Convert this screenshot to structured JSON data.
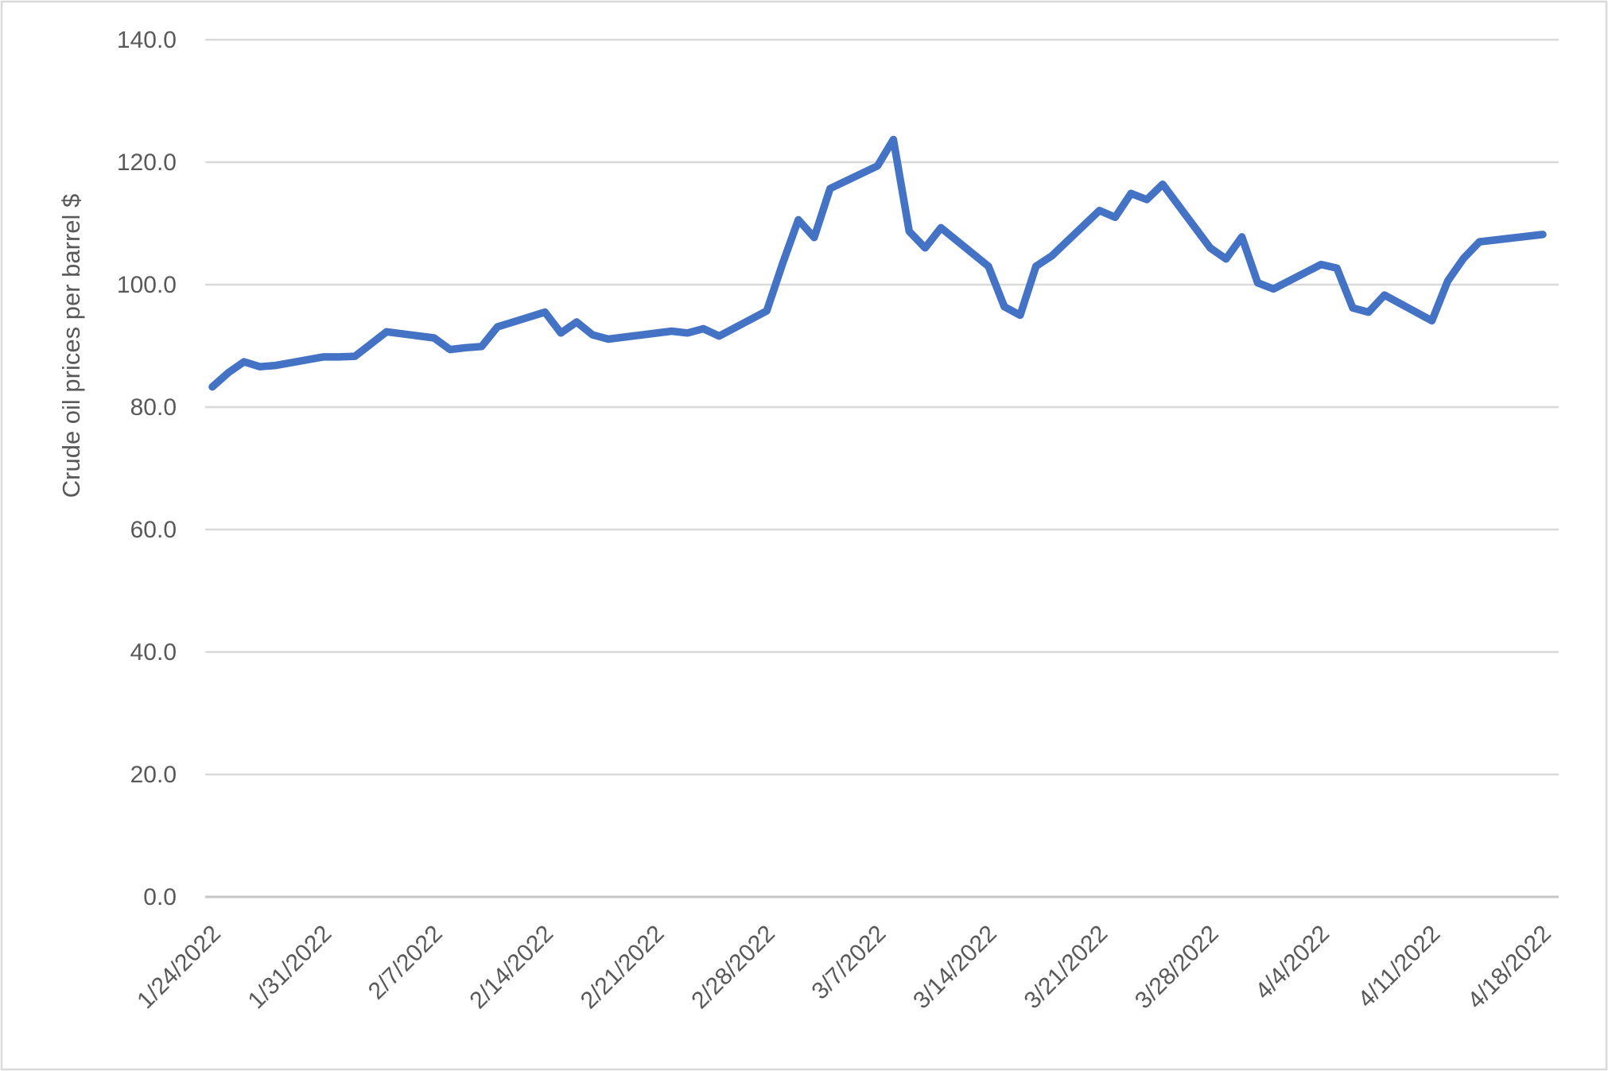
{
  "chart_data": {
    "type": "line",
    "title": "",
    "xlabel": "",
    "ylabel": "Crude oil prices per barrel $",
    "ylim": [
      0,
      140
    ],
    "ytick_step": 20,
    "ytick_labels": [
      "0.0",
      "20.0",
      "40.0",
      "60.0",
      "80.0",
      "100.0",
      "120.0",
      "140.0"
    ],
    "xtick_labels": [
      "1/24/2022",
      "1/31/2022",
      "2/7/2022",
      "2/14/2022",
      "2/21/2022",
      "2/28/2022",
      "3/7/2022",
      "3/14/2022",
      "3/21/2022",
      "3/28/2022",
      "4/4/2022",
      "4/11/2022",
      "4/18/2022"
    ],
    "x_axis_type": "date",
    "x_range": [
      "1/24/2022",
      "4/18/2022"
    ],
    "grid": "horizontal",
    "legend": "none",
    "series": [
      {
        "name": "Crude oil prices per barrel $",
        "points": [
          {
            "date": "1/24/2022",
            "value": 83.3
          },
          {
            "date": "1/25/2022",
            "value": 85.6
          },
          {
            "date": "1/26/2022",
            "value": 87.4
          },
          {
            "date": "1/27/2022",
            "value": 86.6
          },
          {
            "date": "1/28/2022",
            "value": 86.8
          },
          {
            "date": "1/31/2022",
            "value": 88.2
          },
          {
            "date": "2/1/2022",
            "value": 88.2
          },
          {
            "date": "2/2/2022",
            "value": 88.3
          },
          {
            "date": "2/3/2022",
            "value": 90.3
          },
          {
            "date": "2/4/2022",
            "value": 92.3
          },
          {
            "date": "2/7/2022",
            "value": 91.3
          },
          {
            "date": "2/8/2022",
            "value": 89.4
          },
          {
            "date": "2/9/2022",
            "value": 89.7
          },
          {
            "date": "2/10/2022",
            "value": 89.9
          },
          {
            "date": "2/11/2022",
            "value": 93.1
          },
          {
            "date": "2/14/2022",
            "value": 95.5
          },
          {
            "date": "2/15/2022",
            "value": 92.1
          },
          {
            "date": "2/16/2022",
            "value": 93.9
          },
          {
            "date": "2/17/2022",
            "value": 91.8
          },
          {
            "date": "2/18/2022",
            "value": 91.1
          },
          {
            "date": "2/22/2022",
            "value": 92.4
          },
          {
            "date": "2/23/2022",
            "value": 92.1
          },
          {
            "date": "2/24/2022",
            "value": 92.8
          },
          {
            "date": "2/25/2022",
            "value": 91.6
          },
          {
            "date": "2/28/2022",
            "value": 95.7
          },
          {
            "date": "3/1/2022",
            "value": 103.4
          },
          {
            "date": "3/2/2022",
            "value": 110.6
          },
          {
            "date": "3/3/2022",
            "value": 107.7
          },
          {
            "date": "3/4/2022",
            "value": 115.7
          },
          {
            "date": "3/7/2022",
            "value": 119.4
          },
          {
            "date": "3/8/2022",
            "value": 123.7
          },
          {
            "date": "3/9/2022",
            "value": 108.7
          },
          {
            "date": "3/10/2022",
            "value": 106.0
          },
          {
            "date": "3/11/2022",
            "value": 109.3
          },
          {
            "date": "3/14/2022",
            "value": 103.0
          },
          {
            "date": "3/15/2022",
            "value": 96.4
          },
          {
            "date": "3/16/2022",
            "value": 95.0
          },
          {
            "date": "3/17/2022",
            "value": 103.0
          },
          {
            "date": "3/18/2022",
            "value": 104.7
          },
          {
            "date": "3/21/2022",
            "value": 112.1
          },
          {
            "date": "3/22/2022",
            "value": 111.0
          },
          {
            "date": "3/23/2022",
            "value": 114.9
          },
          {
            "date": "3/24/2022",
            "value": 113.9
          },
          {
            "date": "3/25/2022",
            "value": 116.4
          },
          {
            "date": "3/28/2022",
            "value": 106.0
          },
          {
            "date": "3/29/2022",
            "value": 104.2
          },
          {
            "date": "3/30/2022",
            "value": 107.8
          },
          {
            "date": "3/31/2022",
            "value": 100.3
          },
          {
            "date": "4/1/2022",
            "value": 99.3
          },
          {
            "date": "4/4/2022",
            "value": 103.3
          },
          {
            "date": "4/5/2022",
            "value": 102.7
          },
          {
            "date": "4/6/2022",
            "value": 96.2
          },
          {
            "date": "4/7/2022",
            "value": 95.5
          },
          {
            "date": "4/8/2022",
            "value": 98.3
          },
          {
            "date": "4/11/2022",
            "value": 94.1
          },
          {
            "date": "4/12/2022",
            "value": 100.6
          },
          {
            "date": "4/13/2022",
            "value": 104.3
          },
          {
            "date": "4/14/2022",
            "value": 107.0
          },
          {
            "date": "4/18/2022",
            "value": 108.2
          }
        ]
      }
    ],
    "colors": {
      "line": "#4472C4",
      "gridline": "#D9D9D9",
      "axis_line": "#C6C6C6",
      "tick_label": "#595959",
      "axis_title": "#595959",
      "border": "#D9D9D9",
      "background": "#FFFFFF"
    }
  }
}
